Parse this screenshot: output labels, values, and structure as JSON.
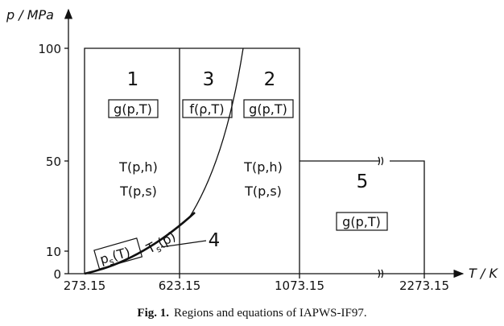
{
  "axes": {
    "y_label": "p / MPa",
    "x_label": "T / K",
    "y_ticks": [
      "100",
      "50",
      "10",
      "0"
    ],
    "x_ticks": [
      "273.15",
      "623.15",
      "1073.15",
      "2273.15"
    ]
  },
  "regions": [
    {
      "number": "1",
      "equations": [
        "g(p,T)",
        "T(p,h)",
        "T(p,s)"
      ]
    },
    {
      "number": "3",
      "equations": [
        "f(ρ,T)"
      ]
    },
    {
      "number": "2",
      "equations": [
        "g(p,T)",
        "T(p,h)",
        "T(p,s)"
      ]
    },
    {
      "number": "5",
      "equations": [
        "g(p,T)"
      ]
    },
    {
      "number": "4",
      "saturation_pressure": {
        "symbol": "p",
        "subscript": "s",
        "argument": "(T)"
      },
      "saturation_temperature": {
        "symbol": "T",
        "subscript": "s",
        "argument": "(p)"
      }
    }
  ],
  "caption": {
    "label": "Fig. 1.",
    "text": "Regions and equations of IAPWS-IF97."
  }
}
